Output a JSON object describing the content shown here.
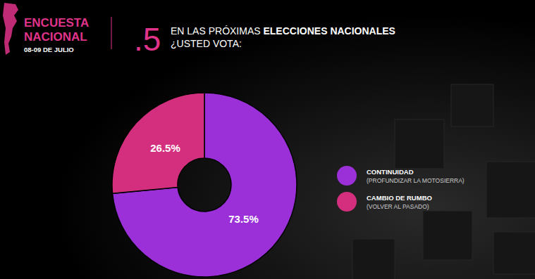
{
  "chart_data": {
    "type": "pie",
    "title": "EN LAS PRÓXIMAS ELECCIONES NACIONALES",
    "subtitle": "¿USTED VOTA:",
    "annotations": [
      "ENCUESTA",
      "NACIONAL",
      "08-09 DE JULIO",
      ".5"
    ],
    "categories": [
      "CONTINUIDAD",
      "CAMBIO DE RUMBO"
    ],
    "descriptions": [
      "(PROFUNDIZAR LA MOTOSIERRA)",
      "(VOLVER AL PASADO)"
    ],
    "values": [
      73.5,
      26.5
    ],
    "value_labels": [
      "73.5%",
      "26.5%"
    ],
    "colors": [
      "#9b30d9",
      "#d42f7f"
    ],
    "data_labels": true,
    "legend": "right"
  }
}
